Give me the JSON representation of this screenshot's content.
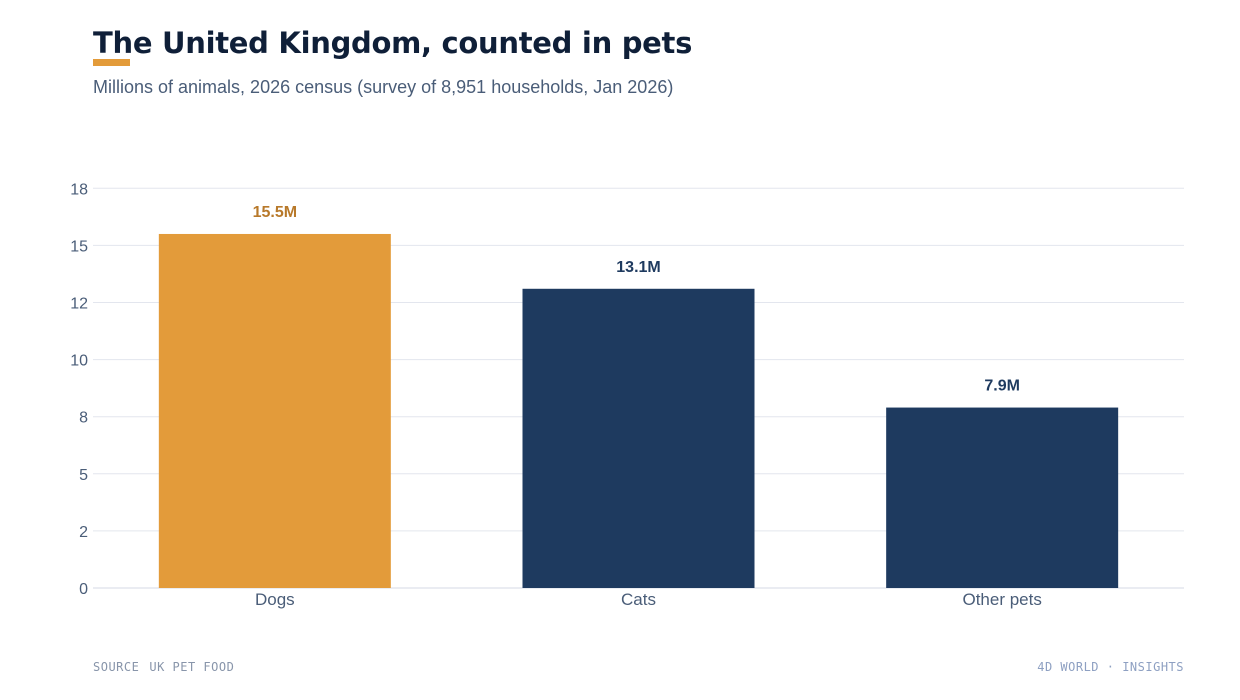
{
  "header": {
    "title": "The United Kingdom, counted in pets",
    "subtitle": "Millions of animals, 2026 census (survey of 8,951 households, Jan 2026)"
  },
  "footer": {
    "source_label": "SOURCE",
    "source_value": "UK PET FOOD",
    "brand": "4D WORLD · INSIGHTS"
  },
  "colors": {
    "highlight": "#e39b3a",
    "highlight_label": "#b8792a",
    "primary": "#1e3a5f",
    "grid": "#e3e6ee",
    "axis_text": "#4a5d78"
  },
  "chart_data": {
    "type": "bar",
    "categories": [
      "Dogs",
      "Cats",
      "Other pets"
    ],
    "values": [
      15.5,
      13.1,
      7.9
    ],
    "data_labels": [
      "15.5M",
      "13.1M",
      "7.9M"
    ],
    "highlighted_category": "Dogs",
    "title": "The United Kingdom, counted in pets",
    "subtitle": "Millions of animals, 2026 census (survey of 8,951 households, Jan 2026)",
    "xlabel": "",
    "ylabel": "",
    "ylim": [
      0,
      17.6
    ],
    "yticks": [
      0,
      2.5,
      5,
      7.5,
      10,
      12.5,
      15,
      17.5
    ],
    "ytick_labels": [
      "0",
      "2",
      "5",
      "8",
      "10",
      "12",
      "15",
      "18"
    ],
    "grid": true,
    "legend": "none"
  }
}
